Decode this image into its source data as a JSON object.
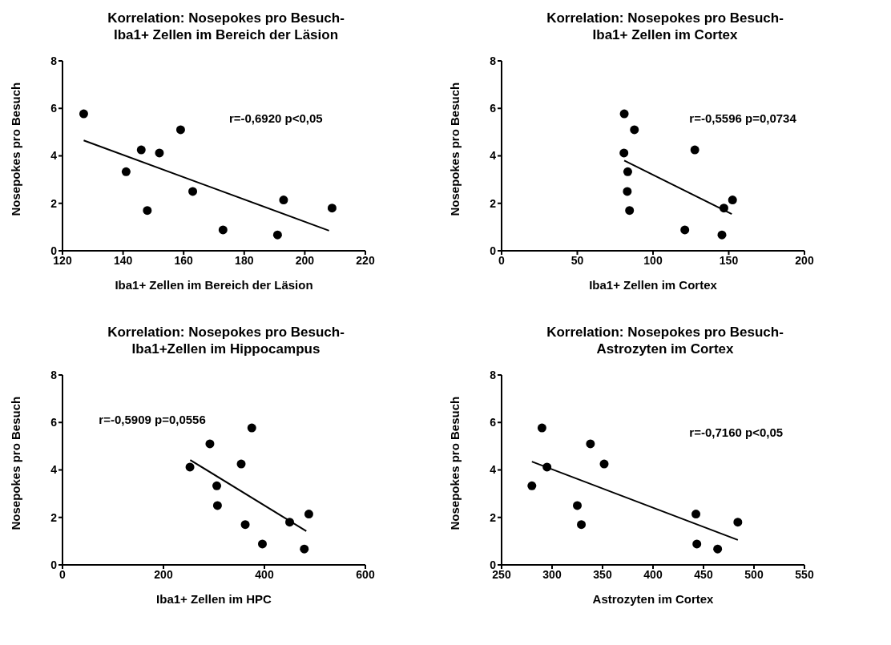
{
  "chart_data": [
    {
      "type": "scatter",
      "title": "Korrelation: Nosepokes pro Besuch-\nIba1+ Zellen im Bereich der Läsion",
      "xlabel": "Iba1+ Zellen im Bereich der Läsion",
      "ylabel": "Nosepokes pro Besuch",
      "xlim": [
        120,
        220
      ],
      "xticks": [
        120,
        140,
        160,
        180,
        200,
        220
      ],
      "ylim": [
        0,
        8
      ],
      "yticks": [
        0,
        2,
        4,
        6,
        8
      ],
      "grid": false,
      "legend": false,
      "annotations": [
        "r=-0,6920 p<0,05"
      ],
      "series": [
        {
          "type": "scatter",
          "color": "#000000",
          "marker": "circle",
          "x": [
            127,
            141,
            146,
            148,
            152,
            159,
            163,
            173,
            191,
            193,
            209
          ],
          "values": [
            5.77,
            3.33,
            4.25,
            1.7,
            4.12,
            5.1,
            2.5,
            0.88,
            0.67,
            2.14,
            1.8
          ]
        },
        {
          "type": "line",
          "color": "#000000",
          "x": [
            127,
            208
          ],
          "values": [
            4.65,
            0.85
          ]
        }
      ]
    },
    {
      "type": "scatter",
      "title": "Korrelation: Nosepokes pro Besuch-\nIba1+ Zellen im Cortex",
      "xlabel": "Iba1+ Zellen im Cortex",
      "ylabel": "Nosepokes pro Besuch",
      "xlim": [
        0,
        200
      ],
      "xticks": [
        0,
        50,
        100,
        150,
        200
      ],
      "ylim": [
        0,
        8
      ],
      "yticks": [
        0,
        2,
        4,
        6,
        8
      ],
      "grid": false,
      "legend": false,
      "annotations": [
        "r=-0,5596 p=0,0734"
      ],
      "series": [
        {
          "type": "scatter",
          "color": "#000000",
          "marker": "circle",
          "x": [
            81,
            87.7,
            80.8,
            83.3,
            83,
            84.5,
            127.6,
            121,
            146.8,
            145.5,
            152.5
          ],
          "values": [
            5.77,
            5.1,
            4.12,
            3.33,
            2.5,
            1.7,
            4.25,
            0.88,
            1.8,
            0.67,
            2.14
          ]
        },
        {
          "type": "line",
          "color": "#000000",
          "x": [
            81,
            152
          ],
          "values": [
            3.8,
            1.55
          ]
        }
      ]
    },
    {
      "type": "scatter",
      "title": "Korrelation: Nosepokes pro Besuch-\nIba1+Zellen im Hippocampus",
      "xlabel": "Iba1+ Zellen im HPC",
      "ylabel": "Nosepokes pro Besuch",
      "xlim": [
        0,
        600
      ],
      "xticks": [
        0,
        200,
        400,
        600
      ],
      "ylim": [
        0,
        8
      ],
      "yticks": [
        0,
        2,
        4,
        6,
        8
      ],
      "grid": false,
      "legend": false,
      "annotations": [
        "r=-0,5909 p=0,0556"
      ],
      "series": [
        {
          "type": "scatter",
          "color": "#000000",
          "marker": "circle",
          "x": [
            252.5,
            292,
            375,
            354,
            305.6,
            307,
            362,
            396,
            450,
            479,
            488
          ],
          "values": [
            4.12,
            5.1,
            5.77,
            4.25,
            3.33,
            2.5,
            1.7,
            0.88,
            1.8,
            0.67,
            2.14
          ]
        },
        {
          "type": "line",
          "color": "#000000",
          "x": [
            253,
            483
          ],
          "values": [
            4.42,
            1.42
          ]
        }
      ]
    },
    {
      "type": "scatter",
      "title": "Korrelation: Nosepokes pro Besuch-\nAstrozyten im Cortex",
      "xlabel": "Astrozyten im Cortex",
      "ylabel": "Nosepokes pro Besuch",
      "xlim": [
        250,
        550
      ],
      "xticks": [
        250,
        300,
        350,
        400,
        450,
        500,
        550
      ],
      "ylim": [
        0,
        8
      ],
      "yticks": [
        0,
        2,
        4,
        6,
        8
      ],
      "grid": false,
      "legend": false,
      "annotations": [
        "r=-0,7160 p<0,05"
      ],
      "series": [
        {
          "type": "scatter",
          "color": "#000000",
          "marker": "circle",
          "x": [
            280,
            290,
            295,
            338,
            351.6,
            325,
            329,
            442.5,
            443.4,
            464,
            484
          ],
          "values": [
            3.33,
            5.77,
            4.12,
            5.1,
            4.25,
            2.5,
            1.7,
            2.14,
            0.88,
            0.67,
            1.8
          ]
        },
        {
          "type": "line",
          "color": "#000000",
          "x": [
            280,
            484
          ],
          "values": [
            4.35,
            1.05
          ]
        }
      ]
    }
  ]
}
